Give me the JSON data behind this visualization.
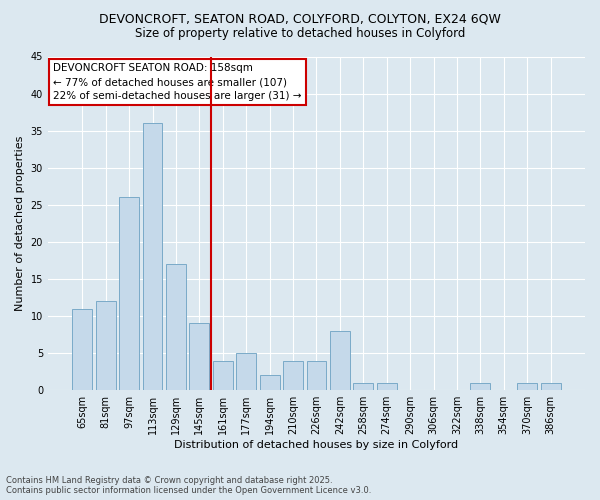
{
  "title_line1": "DEVONCROFT, SEATON ROAD, COLYFORD, COLYTON, EX24 6QW",
  "title_line2": "Size of property relative to detached houses in Colyford",
  "xlabel": "Distribution of detached houses by size in Colyford",
  "ylabel": "Number of detached properties",
  "categories": [
    "65sqm",
    "81sqm",
    "97sqm",
    "113sqm",
    "129sqm",
    "145sqm",
    "161sqm",
    "177sqm",
    "194sqm",
    "210sqm",
    "226sqm",
    "242sqm",
    "258sqm",
    "274sqm",
    "290sqm",
    "306sqm",
    "322sqm",
    "338sqm",
    "354sqm",
    "370sqm",
    "386sqm"
  ],
  "values": [
    11,
    12,
    26,
    36,
    17,
    9,
    4,
    5,
    2,
    4,
    4,
    8,
    1,
    1,
    0,
    0,
    0,
    1,
    0,
    1,
    1
  ],
  "bar_color": "#c5d9ea",
  "bar_edge_color": "#7aaac8",
  "vline_x": 5.5,
  "vline_color": "#cc0000",
  "annotation_box_text": "DEVONCROFT SEATON ROAD: 158sqm\n← 77% of detached houses are smaller (107)\n22% of semi-detached houses are larger (31) →",
  "annotation_box_edgecolor": "#cc0000",
  "annotation_box_facecolor": "#ffffff",
  "footer_text": "Contains HM Land Registry data © Crown copyright and database right 2025.\nContains public sector information licensed under the Open Government Licence v3.0.",
  "ylim": [
    0,
    45
  ],
  "yticks": [
    0,
    5,
    10,
    15,
    20,
    25,
    30,
    35,
    40,
    45
  ],
  "background_color": "#dce8f0",
  "plot_background": "#dce8f0",
  "grid_color": "#ffffff",
  "title_fontsize": 9,
  "subtitle_fontsize": 8.5,
  "axis_label_fontsize": 8,
  "tick_fontsize": 7,
  "annotation_fontsize": 7.5
}
